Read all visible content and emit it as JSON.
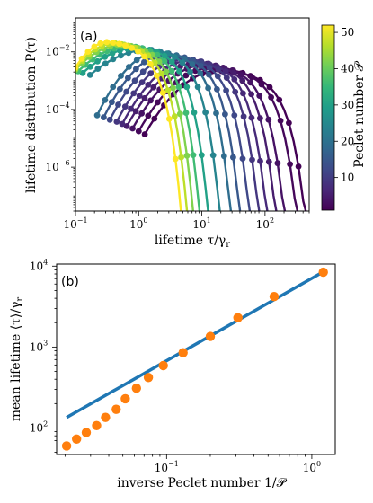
{
  "chart_data": [
    {
      "type": "line",
      "panel_label": "(a)",
      "xlabel": "lifetime τ/γ",
      "xlabel_sub": "r",
      "ylabel": "lifetime distribution P(τ)",
      "x_scale": "log",
      "y_scale": "log",
      "xlim": [
        0.1,
        500
      ],
      "ylim": [
        3e-08,
        0.15
      ],
      "x_ticks": [
        0.1,
        1,
        10,
        100
      ],
      "x_tick_labels": [
        "10",
        "10",
        "10",
        "10"
      ],
      "x_tick_exponents": [
        "−1",
        "0",
        "1",
        "2"
      ],
      "y_ticks": [
        0.01,
        0.0001,
        1e-06
      ],
      "y_tick_labels": [
        "10",
        "10",
        "10"
      ],
      "y_tick_exponents": [
        "−2",
        "−4",
        "−6"
      ],
      "colorbar": {
        "label": "Peclet number 𝒫",
        "range": [
          1,
          52
        ],
        "ticks": [
          10,
          20,
          30,
          40,
          50
        ],
        "tick_labels": [
          "10",
          "20",
          "30",
          "40",
          "50"
        ],
        "colormap": [
          "#440154",
          "#482878",
          "#3e4a89",
          "#31688e",
          "#26828e",
          "#1f9e89",
          "#35b779",
          "#6ece58",
          "#b5de2b",
          "#fde725"
        ]
      },
      "series": [
        {
          "pe": 1.2,
          "tmin": 1.25,
          "tpeak": 18.0,
          "ppeak": 0.0022,
          "tcut": 480
        },
        {
          "pe": 2.0,
          "tmin": 1.0,
          "tpeak": 14.0,
          "ppeak": 0.0028,
          "tcut": 350
        },
        {
          "pe": 3.5,
          "tmin": 0.8,
          "tpeak": 11.0,
          "ppeak": 0.0035,
          "tcut": 220
        },
        {
          "pe": 5.0,
          "tmin": 0.65,
          "tpeak": 8.5,
          "ppeak": 0.0042,
          "tcut": 160
        },
        {
          "pe": 7.0,
          "tmin": 0.55,
          "tpeak": 6.5,
          "ppeak": 0.005,
          "tcut": 115
        },
        {
          "pe": 9.0,
          "tmin": 0.45,
          "tpeak": 5.0,
          "ppeak": 0.006,
          "tcut": 85
        },
        {
          "pe": 12.0,
          "tmin": 0.35,
          "tpeak": 3.8,
          "ppeak": 0.007,
          "tcut": 60
        },
        {
          "pe": 15.0,
          "tmin": 0.28,
          "tpeak": 2.8,
          "ppeak": 0.0085,
          "tcut": 42
        },
        {
          "pe": 19.0,
          "tmin": 0.22,
          "tpeak": 2.1,
          "ppeak": 0.01,
          "tcut": 30
        },
        {
          "pe": 24.0,
          "tmin": 0.17,
          "tpeak": 1.5,
          "ppeak": 0.012,
          "tcut": 20
        },
        {
          "pe": 30.0,
          "tmin": 0.13,
          "tpeak": 1.0,
          "ppeak": 0.014,
          "tcut": 13
        },
        {
          "pe": 36.0,
          "tmin": 0.11,
          "tpeak": 0.75,
          "ppeak": 0.016,
          "tcut": 9.5
        },
        {
          "pe": 42.0,
          "tmin": 0.1,
          "tpeak": 0.55,
          "ppeak": 0.018,
          "tcut": 7.5
        },
        {
          "pe": 47.0,
          "tmin": 0.1,
          "tpeak": 0.42,
          "ppeak": 0.02,
          "tcut": 6.0
        },
        {
          "pe": 52.0,
          "tmin": 0.1,
          "tpeak": 0.33,
          "ppeak": 0.022,
          "tcut": 4.8
        }
      ]
    },
    {
      "type": "scatter",
      "panel_label": "(b)",
      "xlabel": "inverse Peclet number 1/𝒫",
      "ylabel": "mean lifetime ⟨τ⟩/γ",
      "ylabel_sub": "r",
      "x_scale": "log",
      "y_scale": "log",
      "xlim": [
        0.0175,
        1.45
      ],
      "ylim": [
        47,
        10600
      ],
      "x_ticks": [
        0.1,
        1
      ],
      "x_tick_labels": [
        "10",
        "10"
      ],
      "x_tick_exponents": [
        "−1",
        "0"
      ],
      "y_ticks": [
        100,
        1000,
        10000
      ],
      "y_tick_labels": [
        "10",
        "10",
        "10"
      ],
      "y_tick_exponents": [
        "2",
        "3",
        "4"
      ],
      "marker_color": "#ff7f0e",
      "fit_color": "#1f77b4",
      "fit_line": {
        "x": [
          0.0205,
          1.2
        ],
        "y": [
          135,
          8500
        ]
      },
      "points": {
        "x": [
          0.0205,
          0.024,
          0.028,
          0.033,
          0.038,
          0.045,
          0.052,
          0.062,
          0.075,
          0.095,
          0.13,
          0.2,
          0.31,
          0.55,
          1.2
        ],
        "y": [
          60,
          73,
          88,
          107,
          135,
          170,
          230,
          310,
          420,
          590,
          850,
          1350,
          2300,
          4200,
          8400
        ]
      }
    }
  ]
}
